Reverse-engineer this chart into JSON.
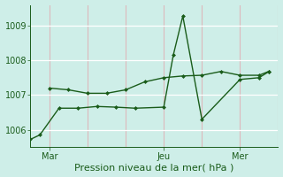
{
  "background_color": "#ceeee8",
  "grid_color_v": "#ddb8bc",
  "grid_color_h": "#ffffff",
  "line_color": "#1a5c1a",
  "xlabel": "Pression niveau de la mer( hPa )",
  "ylim": [
    1005.5,
    1009.6
  ],
  "yticks": [
    1006,
    1007,
    1008,
    1009
  ],
  "xtick_labels": [
    "Mar",
    "Jeu",
    "Mer"
  ],
  "xtick_positions": [
    2,
    14,
    22
  ],
  "xlim": [
    0,
    26
  ],
  "vgrid_positions": [
    2,
    6,
    10,
    14,
    18,
    22,
    26
  ],
  "line1_x": [
    2,
    4,
    6,
    8,
    10,
    12,
    14,
    16,
    18,
    20,
    22,
    24,
    25
  ],
  "line1_y": [
    1007.2,
    1007.15,
    1007.05,
    1007.05,
    1007.15,
    1007.38,
    1007.5,
    1007.55,
    1007.57,
    1007.68,
    1007.57,
    1007.57,
    1007.68
  ],
  "line2_x": [
    0,
    1,
    3,
    5,
    7,
    9,
    11,
    14,
    15,
    16,
    18,
    22,
    24,
    25
  ],
  "line2_y": [
    1005.72,
    1005.85,
    1006.62,
    1006.62,
    1006.67,
    1006.65,
    1006.62,
    1006.65,
    1008.15,
    1009.28,
    1006.3,
    1007.45,
    1007.5,
    1007.67
  ],
  "marker_size": 2.5,
  "linewidth": 1.0,
  "xlabel_fontsize": 8,
  "tick_fontsize": 7
}
